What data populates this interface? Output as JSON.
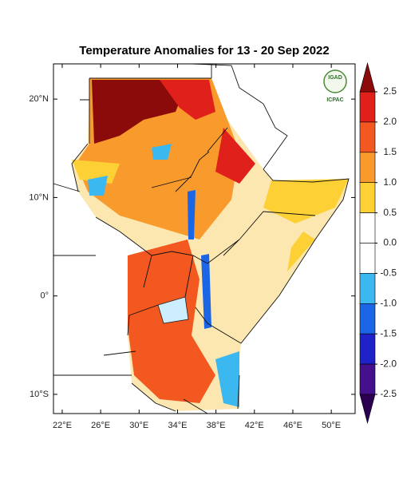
{
  "map": {
    "title": "Temperature Anomalies for 13 - 20 Sep 2022",
    "lonlim": [
      21.09,
      52.48
    ],
    "latlim": [
      -11.95,
      23.58
    ],
    "lon_ticks": [
      {
        "value": 22,
        "label": "22°E"
      },
      {
        "value": 26,
        "label": "26°E"
      },
      {
        "value": 30,
        "label": "30°E"
      },
      {
        "value": 34,
        "label": "34°E"
      },
      {
        "value": 38,
        "label": "38°E"
      },
      {
        "value": 42,
        "label": "42°E"
      },
      {
        "value": 46,
        "label": "46°E"
      },
      {
        "value": 50,
        "label": "50°E"
      }
    ],
    "lat_ticks": [
      {
        "value": 20,
        "label": "20°N"
      },
      {
        "value": 10,
        "label": "10°N"
      },
      {
        "value": 0,
        "label": "0°"
      },
      {
        "value": -10,
        "label": "10°S"
      }
    ],
    "colorbar": {
      "ticks": [
        2.5,
        {
          "value": 2,
          "label": "2.0"
        },
        1.5,
        {
          "value": 1,
          "label": "1.0"
        },
        0.5,
        {
          "value": 0,
          "label": "0.0"
        },
        -0.5,
        {
          "value": -1,
          "label": "-1.0"
        },
        -1.5,
        {
          "value": -2,
          "label": "-2.0"
        },
        -2.5
      ],
      "colors": [
        "#e0201b",
        "#f2581f",
        "#f89a2c",
        "#fdd136",
        "#ffffff",
        "#ffffff",
        "#3cb8f0",
        "#1a66e6",
        "#1f22c8",
        "#44108c"
      ],
      "over_color": "#8b0a0a",
      "under_color": "#2c0050"
    },
    "logo": {
      "name": "IGAD",
      "org": "ICPAC"
    }
  }
}
